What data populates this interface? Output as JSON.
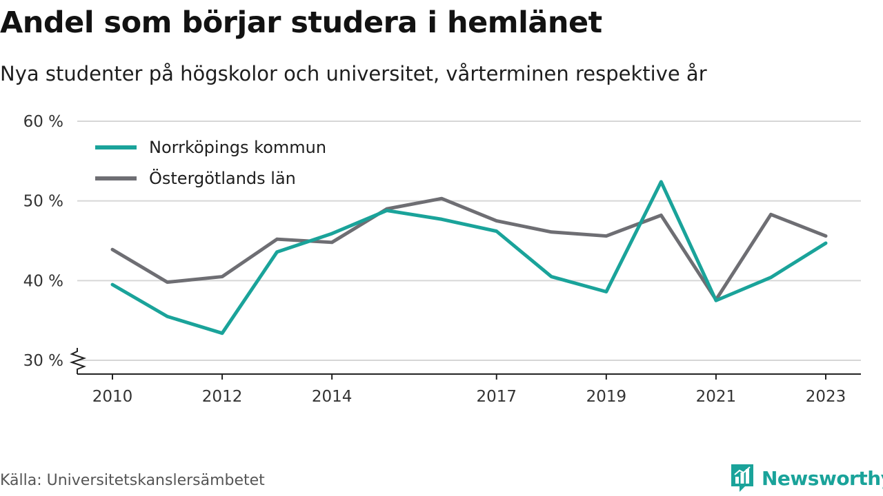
{
  "title": "Andel som börjar studera i hemlänet",
  "subtitle": "Nya studenter på högskolor och universitet, vårterminen respektive år",
  "source": "Källa: Universitetskanslersämbetet",
  "brand": {
    "name": "Newsworthy",
    "color": "#1aa39a",
    "icon": "bar-chart-speech-bubble-icon"
  },
  "chart_data": {
    "type": "line",
    "x": [
      2010,
      2011,
      2012,
      2013,
      2014,
      2015,
      2016,
      2017,
      2018,
      2019,
      2020,
      2021,
      2022,
      2023
    ],
    "x_tick_labels": [
      "2010",
      "2012",
      "2014",
      "2017",
      "2019",
      "2021",
      "2023"
    ],
    "y_tick_labels": [
      "30 %",
      "40 %",
      "50 %",
      "60 %"
    ],
    "y_ticks": [
      30,
      40,
      50,
      60
    ],
    "ylim": [
      30,
      60
    ],
    "y_axis_break": true,
    "grid": true,
    "legend_position": "top-left",
    "series": [
      {
        "name": "Norrköpings kommun",
        "color": "#1aa39a",
        "values": [
          39.5,
          35.5,
          33.4,
          43.6,
          45.9,
          48.8,
          47.7,
          46.2,
          40.5,
          38.6,
          52.4,
          37.5,
          40.4,
          44.7
        ]
      },
      {
        "name": "Östergötlands län",
        "color": "#6e6e73",
        "values": [
          43.9,
          39.8,
          40.5,
          45.2,
          44.8,
          49.0,
          50.3,
          47.5,
          46.1,
          45.6,
          48.2,
          37.6,
          48.3,
          45.6
        ]
      }
    ]
  }
}
